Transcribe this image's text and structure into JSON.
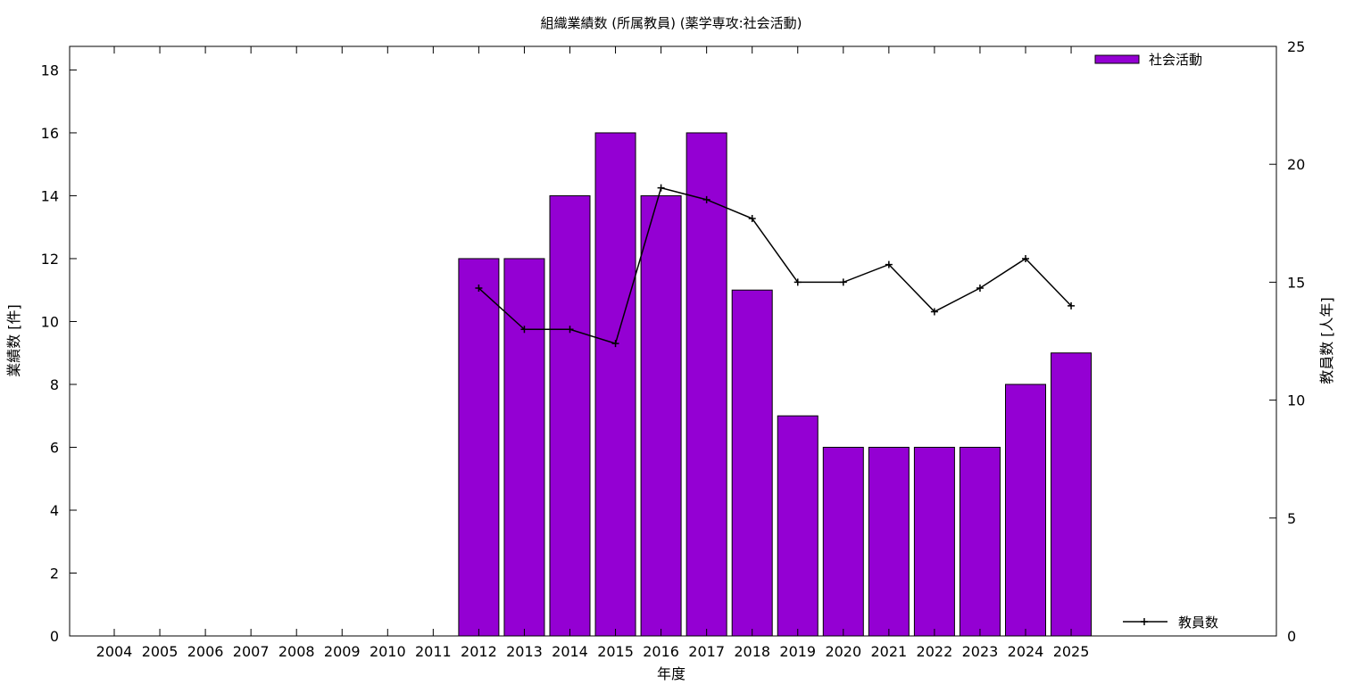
{
  "chart_data": {
    "type": "bar",
    "title": "組織業績数 (所属教員) (薬学専攻:社会活動)",
    "xlabel": "年度",
    "ylabel": "業績数 [件]",
    "y2label": "教員数 [人年]",
    "categories": [
      "2004",
      "2005",
      "2006",
      "2007",
      "2008",
      "2009",
      "2010",
      "2011",
      "2012",
      "2013",
      "2014",
      "2015",
      "2016",
      "2017",
      "2018",
      "2019",
      "2020",
      "2021",
      "2022",
      "2023",
      "2024",
      "2025"
    ],
    "series": [
      {
        "name": "社会活動",
        "type": "bar",
        "axis": "left",
        "color": "#9400d3",
        "values": [
          null,
          null,
          null,
          null,
          null,
          null,
          null,
          null,
          12,
          12,
          14,
          16,
          14,
          16,
          11,
          7,
          6,
          6,
          6,
          6,
          8,
          9
        ]
      },
      {
        "name": "教員数",
        "type": "line",
        "axis": "right",
        "color": "#000000",
        "values": [
          null,
          null,
          null,
          null,
          null,
          null,
          null,
          null,
          14.75,
          13.0,
          13.0,
          12.4,
          19.0,
          18.5,
          17.7,
          15.0,
          15.0,
          15.75,
          13.75,
          14.75,
          16.0,
          14.0
        ]
      }
    ],
    "ylim": [
      0,
      18.75
    ],
    "y2lim": [
      0,
      25
    ],
    "yticks": [
      "0",
      "2",
      "4",
      "6",
      "8",
      "10",
      "12",
      "14",
      "16",
      "18"
    ],
    "y2ticks": [
      "0",
      "5",
      "10",
      "15",
      "20",
      "25"
    ],
    "legend_position": "top-right (bars), bottom-right (line)",
    "grid": false
  }
}
